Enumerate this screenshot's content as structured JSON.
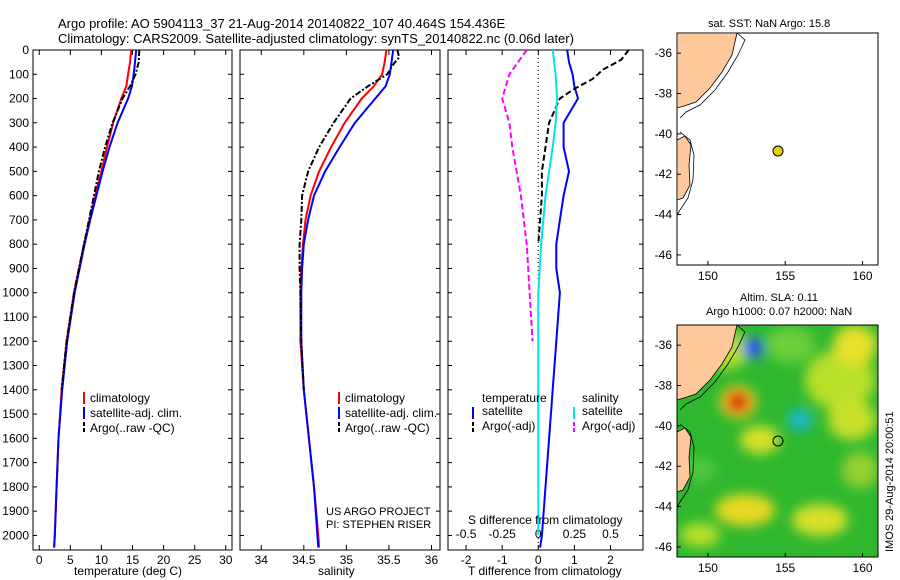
{
  "header": {
    "line1": "Argo profile: AO 5904113_37 21-Aug-2014 20140822_107 40.464S 154.436E",
    "line2": "Climatology: CARS2009. Satellite-adjusted climatology: synTS_20140822.nc (0.06d later)"
  },
  "colors": {
    "climatology": "#ff0000",
    "satellite": "#0000ff",
    "argo": "#000000",
    "sat_salinity": "#00e5e5",
    "argo_salinity": "#ff00ff",
    "land": "#ffc89a",
    "float_marker": "#e6d200"
  },
  "depth_ticks": [
    "0",
    "100",
    "200",
    "300",
    "400",
    "500",
    "600",
    "700",
    "800",
    "900",
    "1000",
    "1100",
    "1200",
    "1300",
    "1400",
    "1500",
    "1600",
    "1700",
    "1800",
    "1900",
    "2000"
  ],
  "chart_data": [
    {
      "type": "line",
      "name": "temperature",
      "xlabel": "temperature (deg C)",
      "ylabel": "",
      "xlim": [
        -1,
        31
      ],
      "ylim": [
        2060,
        0
      ],
      "xticks": [
        "0",
        "5",
        "10",
        "15",
        "20",
        "25",
        "30"
      ],
      "legend": [
        "climatology",
        "satellite-adj. clim.",
        "Argo(..raw -QC)"
      ],
      "legend_placement": "bottom-right",
      "series": [
        {
          "name": "climatology",
          "depth": [
            0,
            50,
            100,
            150,
            200,
            300,
            400,
            500,
            600,
            700,
            800,
            900,
            1000,
            1200,
            1400,
            1600,
            1800,
            2000,
            2050
          ],
          "values": [
            14.8,
            14.6,
            14.3,
            14.0,
            13.2,
            11.9,
            10.9,
            10.0,
            9.0,
            8.1,
            7.2,
            6.4,
            5.6,
            4.4,
            3.6,
            3.1,
            2.8,
            2.5,
            2.4
          ]
        },
        {
          "name": "satellite-adj. clim.",
          "depth": [
            0,
            50,
            100,
            150,
            200,
            300,
            400,
            500,
            600,
            700,
            800,
            900,
            1000,
            1200,
            1400,
            1600,
            1800,
            2000,
            2050
          ],
          "values": [
            15.6,
            15.4,
            15.2,
            14.9,
            14.3,
            12.6,
            11.3,
            10.2,
            9.2,
            8.2,
            7.3,
            6.5,
            5.7,
            4.5,
            3.7,
            3.1,
            2.8,
            2.5,
            2.4
          ]
        },
        {
          "name": "Argo(..raw -QC)",
          "depth": [
            0,
            50,
            100,
            150,
            200,
            300,
            400,
            500,
            600,
            700,
            800,
            900,
            1000,
            1200,
            1400
          ],
          "values": [
            16.1,
            16.0,
            15.5,
            14.6,
            13.4,
            11.8,
            10.6,
            9.6,
            8.8,
            8.0,
            7.2,
            6.4,
            5.6,
            4.4,
            3.6
          ]
        }
      ]
    },
    {
      "type": "line",
      "name": "salinity",
      "xlabel": "salinity",
      "ylabel": "",
      "xlim": [
        33.75,
        36.1
      ],
      "ylim": [
        2060,
        0
      ],
      "xticks": [
        "34",
        "34.5",
        "35",
        "35.5",
        "36"
      ],
      "legend": [
        "climatology",
        "satellite-adj. clim.",
        "Argo(..raw -QC)"
      ],
      "legend_placement": "bottom-right",
      "series": [
        {
          "name": "climatology",
          "depth": [
            0,
            50,
            100,
            150,
            200,
            300,
            400,
            500,
            600,
            700,
            800,
            900,
            1000,
            1200,
            1400,
            1600,
            1800,
            2000,
            2050
          ],
          "values": [
            35.47,
            35.45,
            35.42,
            35.32,
            35.18,
            34.98,
            34.82,
            34.68,
            34.58,
            34.52,
            34.49,
            34.47,
            34.46,
            34.46,
            34.5,
            34.56,
            34.62,
            34.67,
            34.68
          ]
        },
        {
          "name": "satellite-adj. clim.",
          "depth": [
            0,
            50,
            100,
            150,
            200,
            300,
            400,
            500,
            600,
            700,
            800,
            900,
            1000,
            1200,
            1400,
            1600,
            1800,
            2000,
            2050
          ],
          "values": [
            35.55,
            35.53,
            35.51,
            35.46,
            35.34,
            35.1,
            34.92,
            34.75,
            34.62,
            34.55,
            34.5,
            34.48,
            34.47,
            34.47,
            34.5,
            34.56,
            34.62,
            34.66,
            34.67
          ]
        },
        {
          "name": "Argo(..raw -QC)",
          "depth": [
            0,
            30,
            60,
            100,
            150,
            200,
            300,
            400,
            500,
            600,
            700,
            800,
            900,
            1000,
            1200,
            1400
          ],
          "values": [
            35.6,
            35.62,
            35.55,
            35.48,
            35.25,
            35.05,
            34.85,
            34.68,
            34.55,
            34.48,
            34.47,
            34.45,
            34.45,
            34.46,
            34.47,
            34.5
          ]
        }
      ]
    },
    {
      "type": "line",
      "name": "difference",
      "xlabel": "T difference from climatology",
      "xlabel2": "S difference from climatology",
      "xlim": [
        -2.5,
        2.9
      ],
      "ylim": [
        2060,
        0
      ],
      "xticks": [
        "-2",
        "-1",
        "0",
        "1",
        "2"
      ],
      "xticks_S": [
        "-0.5",
        "-0.25",
        "0",
        "0.25",
        "0.5"
      ],
      "legend_left_title": "temperature",
      "legend_right_title": "salinity",
      "legend": [
        "satellite",
        "Argo(-adj)",
        "satellite",
        "Argo(-adj)"
      ],
      "legend_placement": "bottom",
      "series": [
        {
          "name": "satellite",
          "depth": [
            0,
            50,
            100,
            150,
            200,
            300,
            400,
            500,
            600,
            700,
            800,
            900,
            1000,
            1100,
            1200,
            1400,
            1600,
            1800,
            2000,
            2050
          ],
          "values": [
            0.8,
            0.85,
            0.95,
            1.0,
            1.1,
            0.7,
            0.7,
            0.85,
            0.7,
            0.6,
            0.5,
            0.5,
            0.6,
            0.55,
            0.5,
            0.4,
            0.3,
            0.2,
            0.1,
            0.05
          ]
        },
        {
          "name": "Argo(-adj)",
          "depth": [
            0,
            40,
            80,
            120,
            160,
            200,
            300,
            400,
            500,
            600,
            700,
            800
          ],
          "values": [
            2.5,
            2.3,
            1.8,
            1.5,
            1.0,
            0.6,
            0.3,
            0.2,
            0.1,
            0.1,
            0.05,
            0.0
          ]
        },
        {
          "name": "satellite (S)",
          "depth": [
            0,
            50,
            100,
            200,
            300,
            400,
            600,
            800,
            1000,
            1200,
            1400,
            1600,
            1800,
            2000
          ],
          "values": [
            0.1,
            0.11,
            0.12,
            0.13,
            0.12,
            0.1,
            0.05,
            0.02,
            0.0,
            0.0,
            0.0,
            0.0,
            0.0,
            0.0
          ]
        },
        {
          "name": "Argo(-adj) (S)",
          "depth": [
            0,
            100,
            200,
            300,
            400,
            500,
            600,
            700,
            800,
            900,
            1000,
            1100,
            1200
          ],
          "values": [
            -0.08,
            -0.2,
            -0.25,
            -0.2,
            -0.18,
            -0.15,
            -0.12,
            -0.1,
            -0.08,
            -0.07,
            -0.06,
            -0.05,
            -0.04
          ]
        }
      ]
    },
    {
      "type": "scatter",
      "name": "sst-map",
      "title": "sat. SST: NaN Argo: 15.8",
      "xlim": [
        148,
        161
      ],
      "ylim": [
        -46.5,
        -35
      ],
      "xticks": [
        "150",
        "155",
        "160"
      ],
      "yticks": [
        "-36",
        "-38",
        "-40",
        "-42",
        "-44",
        "-46"
      ],
      "points": [
        {
          "x": 154.436,
          "y": -40.464
        }
      ]
    },
    {
      "type": "heatmap",
      "name": "sla-map",
      "title": "Altim. SLA: 0.11",
      "title2": "Argo h1000: 0.07 h2000: NaN",
      "xlim": [
        148,
        161
      ],
      "ylim": [
        -46.5,
        -35
      ],
      "xticks": [
        "150",
        "155",
        "160"
      ],
      "yticks": [
        "-36",
        "-38",
        "-40",
        "-42",
        "-44",
        "-46"
      ],
      "points": [
        {
          "x": 154.436,
          "y": -40.464
        }
      ]
    }
  ],
  "annotations": {
    "project": "US ARGO PROJECT",
    "pi": "PI: STEPHEN RISER",
    "credit": "IMOS 29-Aug-2014 20:00:51"
  }
}
